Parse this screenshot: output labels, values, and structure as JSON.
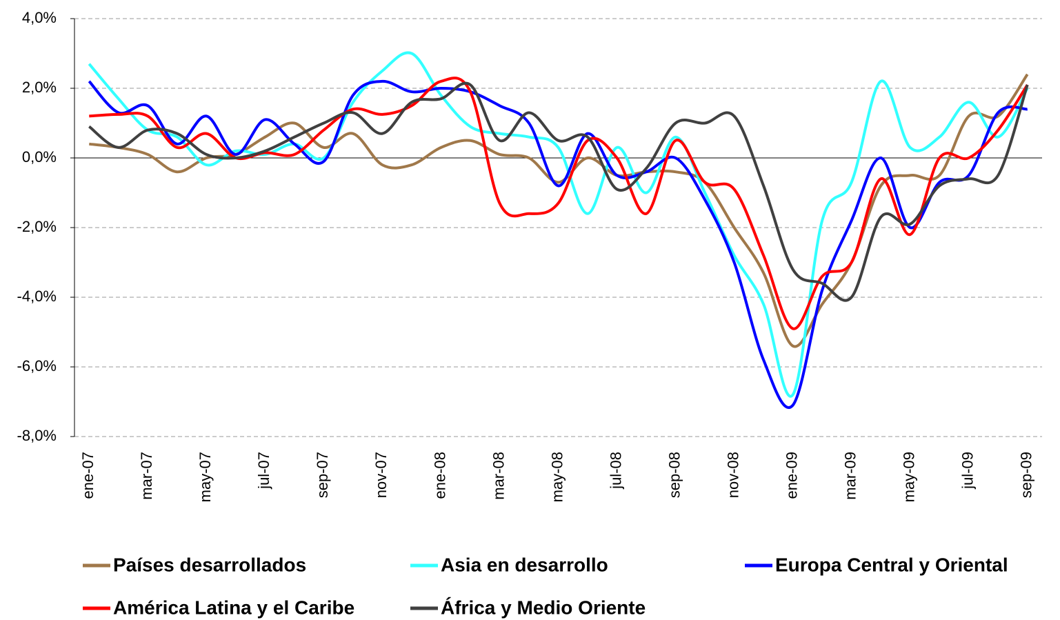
{
  "chart_data": {
    "type": "line",
    "categories": [
      "ene-07",
      null,
      "mar-07",
      null,
      "may-07",
      null,
      "jul-07",
      null,
      "sep-07",
      null,
      "nov-07",
      null,
      "ene-08",
      null,
      "mar-08",
      null,
      "may-08",
      null,
      "jul-08",
      null,
      "sep-08",
      null,
      "nov-08",
      null,
      "ene-09",
      null,
      "mar-09",
      null,
      "may-09",
      null,
      "jul-09",
      null,
      "sep-09"
    ],
    "series": [
      {
        "name": "Países desarrollados",
        "color": "#a0784a",
        "values": [
          0.4,
          0.3,
          0.1,
          -0.4,
          0.0,
          0.1,
          0.6,
          1.0,
          0.3,
          0.7,
          -0.2,
          -0.2,
          0.3,
          0.5,
          0.1,
          0.0,
          -0.7,
          0.0,
          -0.5,
          -0.4,
          -0.4,
          -0.7,
          -2.0,
          -3.3,
          -5.4,
          -4.2,
          -3.0,
          -0.8,
          -0.5,
          -0.5,
          1.2,
          1.2,
          2.4
        ]
      },
      {
        "name": "Asia en desarrollo",
        "color": "#33ffff",
        "values": [
          2.7,
          1.7,
          0.8,
          0.6,
          -0.2,
          0.2,
          0.1,
          0.4,
          0.0,
          1.6,
          2.5,
          3.0,
          1.8,
          0.9,
          0.7,
          0.6,
          0.3,
          -1.6,
          0.3,
          -1.0,
          0.6,
          -1.0,
          -2.8,
          -4.2,
          -6.8,
          -1.8,
          -0.7,
          2.2,
          0.3,
          0.6,
          1.6,
          0.6,
          2.0
        ]
      },
      {
        "name": "Europa Central y Oriental",
        "color": "#0000ff",
        "values": [
          2.2,
          1.3,
          1.5,
          0.4,
          1.2,
          0.1,
          1.1,
          0.4,
          -0.1,
          1.8,
          2.2,
          1.9,
          2.0,
          1.9,
          1.5,
          1.0,
          -0.8,
          0.7,
          -0.5,
          -0.4,
          0.0,
          -1.2,
          -3.0,
          -5.8,
          -7.1,
          -3.8,
          -1.8,
          0.0,
          -2.0,
          -0.7,
          -0.5,
          1.3,
          1.4
        ]
      },
      {
        "name": "América Latina y el Caribe",
        "color": "#ff0000",
        "values": [
          1.2,
          1.25,
          1.2,
          0.3,
          0.7,
          0.0,
          0.15,
          0.1,
          0.8,
          1.4,
          1.25,
          1.5,
          2.2,
          1.9,
          -1.3,
          -1.6,
          -1.3,
          0.5,
          0.0,
          -1.6,
          0.5,
          -0.7,
          -0.9,
          -2.8,
          -4.9,
          -3.4,
          -3.0,
          -0.6,
          -2.2,
          0.0,
          0.0,
          0.8,
          2.1
        ]
      },
      {
        "name": "África y Medio Oriente",
        "color": "#404040",
        "values": [
          0.9,
          0.3,
          0.8,
          0.7,
          0.1,
          0.0,
          0.2,
          0.6,
          1.0,
          1.3,
          0.7,
          1.6,
          1.7,
          2.1,
          0.5,
          1.3,
          0.5,
          0.6,
          -0.9,
          -0.3,
          1.0,
          1.0,
          1.2,
          -0.8,
          -3.2,
          -3.6,
          -4.0,
          -1.7,
          -1.9,
          -0.8,
          -0.6,
          -0.5,
          2.1
        ]
      }
    ],
    "ylim": [
      -8,
      4
    ],
    "yticks": [
      {
        "value": 4,
        "label": "4,0%"
      },
      {
        "value": 2,
        "label": "2,0%"
      },
      {
        "value": 0,
        "label": "0,0%"
      },
      {
        "value": -2,
        "label": "-2,0%"
      },
      {
        "value": -4,
        "label": "-4,0%"
      },
      {
        "value": -6,
        "label": "-6,0%"
      },
      {
        "value": -8,
        "label": "-8,0%"
      }
    ],
    "grid": true,
    "legend": "bottom"
  }
}
